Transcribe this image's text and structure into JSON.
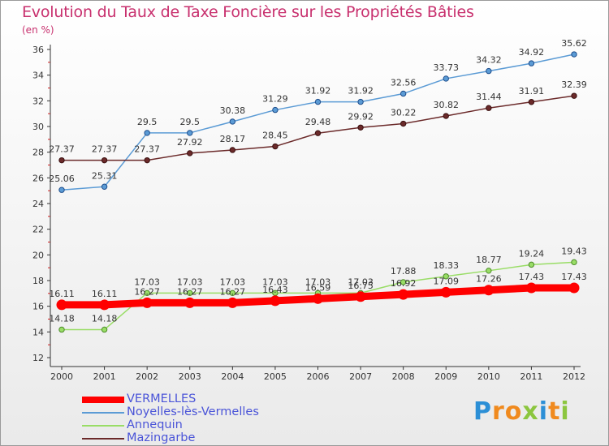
{
  "title": "Evolution du Taux de Taxe Foncière sur les Propriétés Bâties",
  "unit": "(en %)",
  "logo": {
    "text": "Proxiti",
    "letters": [
      {
        "ch": "P",
        "color": "#2c8fd6"
      },
      {
        "ch": "r",
        "color": "#f08a1e"
      },
      {
        "ch": "o",
        "color": "#f08a1e"
      },
      {
        "ch": "x",
        "color": "#8cc63f"
      },
      {
        "ch": "i",
        "color": "#2c8fd6"
      },
      {
        "ch": "t",
        "color": "#f08a1e"
      },
      {
        "ch": "i",
        "color": "#8cc63f"
      }
    ]
  },
  "chart_data": {
    "type": "line",
    "x": [
      "2000",
      "2001",
      "2002",
      "2003",
      "2004",
      "2005",
      "2006",
      "2007",
      "2008",
      "2009",
      "2010",
      "2011",
      "2012"
    ],
    "ylim": [
      12,
      36
    ],
    "yticks": [
      12,
      14,
      16,
      18,
      20,
      22,
      24,
      26,
      28,
      30,
      32,
      34,
      36
    ],
    "grid": false,
    "legend": "bottom-left",
    "series": [
      {
        "name": "VERMELLES",
        "color": "#ff0000",
        "values": [
          16.11,
          16.11,
          16.27,
          16.27,
          16.27,
          16.43,
          16.59,
          16.75,
          16.92,
          17.09,
          17.26,
          17.43,
          17.43
        ],
        "labels": [
          "16.11",
          "16.11",
          "16.27",
          "16.27",
          "16.27",
          "16.43",
          "16.59",
          "16.75",
          "16.92",
          "17.09",
          "17.26",
          "17.43",
          "17.43"
        ]
      },
      {
        "name": "Noyelles-lès-Vermelles",
        "color": "#5b9bd5",
        "values": [
          25.06,
          25.31,
          29.5,
          29.5,
          30.38,
          31.29,
          31.92,
          31.92,
          32.56,
          33.73,
          34.32,
          34.92,
          35.62
        ],
        "labels": [
          "25.06",
          "25.31",
          "29.5",
          "29.5",
          "30.38",
          "31.29",
          "31.92",
          "31.92",
          "32.56",
          "33.73",
          "34.32",
          "34.92",
          "35.62"
        ]
      },
      {
        "name": "Annequin",
        "color": "#99dd66",
        "values": [
          14.18,
          14.18,
          17.03,
          17.03,
          17.03,
          17.03,
          17.03,
          17.03,
          17.88,
          18.33,
          18.77,
          19.24,
          19.43
        ],
        "labels": [
          "14.18",
          "14.18",
          "17.03",
          "17.03",
          "17.03",
          "17.03",
          "17.03",
          "17.03",
          "17.88",
          "18.33",
          "18.77",
          "19.24",
          "19.43"
        ]
      },
      {
        "name": "Mazingarbe",
        "color": "#6b2a2a",
        "values": [
          27.37,
          27.37,
          27.37,
          27.92,
          28.17,
          28.45,
          29.48,
          29.92,
          30.22,
          30.82,
          31.44,
          31.91,
          32.39
        ],
        "labels": [
          "27.37",
          "27.37",
          "27.37",
          "27.92",
          "28.17",
          "28.45",
          "29.48",
          "29.92",
          "30.22",
          "30.82",
          "31.44",
          "31.91",
          "32.39"
        ]
      }
    ]
  }
}
